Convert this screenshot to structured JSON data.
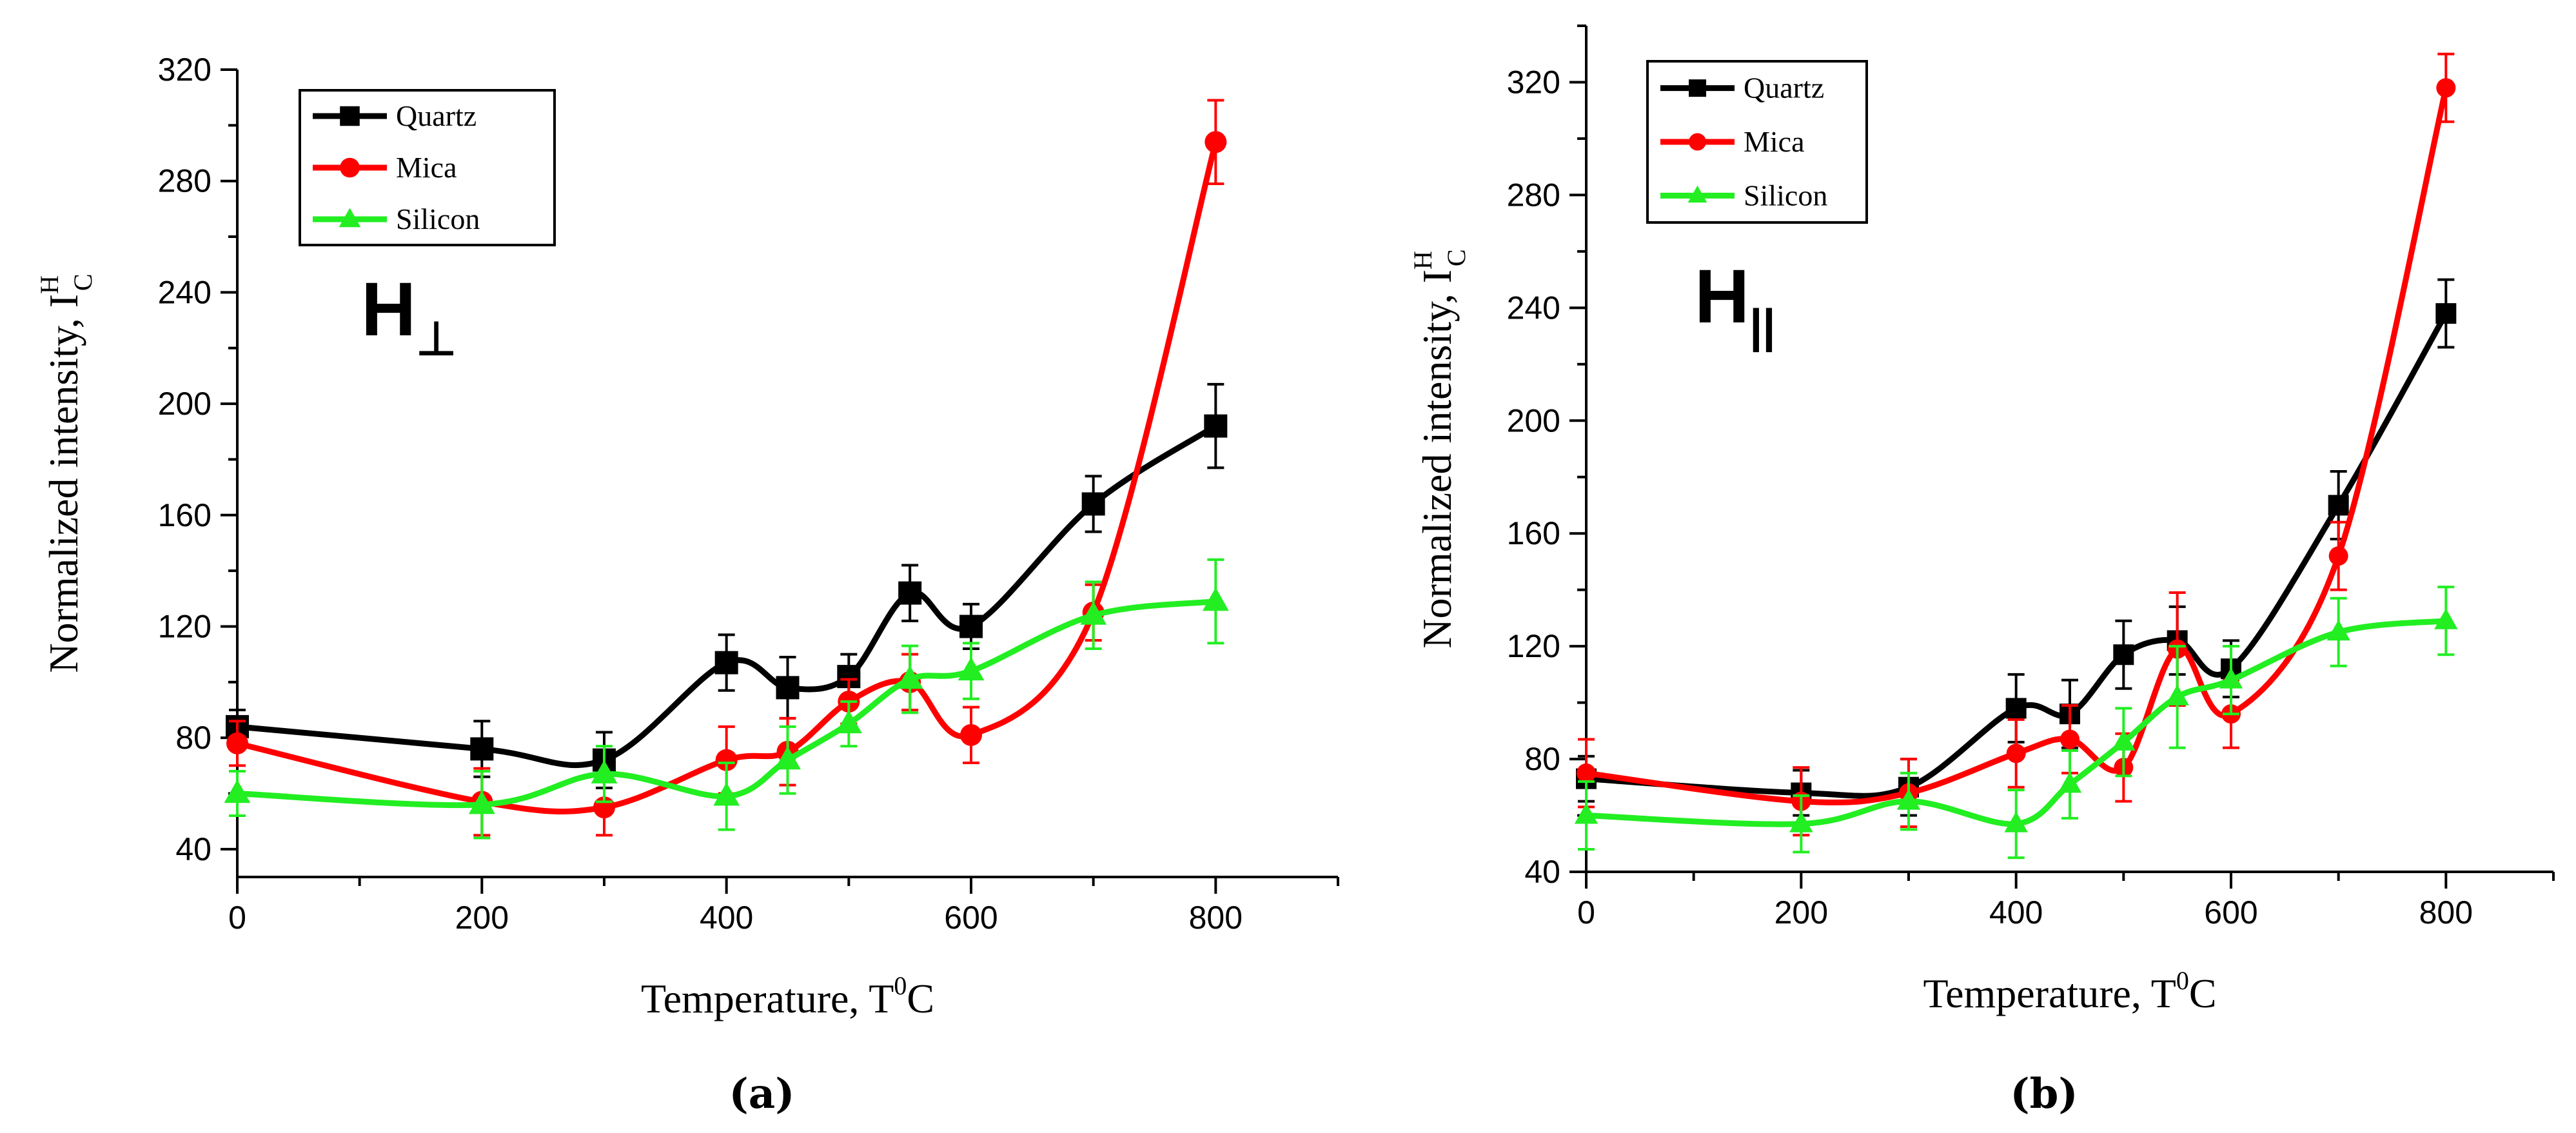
{
  "chart_data": [
    {
      "type": "line",
      "panel_label": "(a)",
      "annotation": {
        "base": "H",
        "sub": "⊥"
      },
      "xlabel": {
        "text": "Temperature, T",
        "sup": "0",
        "tail": "C"
      },
      "ylabel": {
        "text": "Normalized intensity, I",
        "sup": "H",
        "sub": "C"
      },
      "xlim": [
        0,
        900
      ],
      "ylim": [
        30,
        320
      ],
      "xticks": [
        0,
        200,
        400,
        600,
        800
      ],
      "yticks": [
        40,
        80,
        120,
        160,
        200,
        240,
        280,
        320
      ],
      "legend_position": "top-left",
      "series": [
        {
          "name": "Quartz",
          "color": "#000000",
          "marker": "square",
          "x": [
            0,
            200,
            300,
            400,
            450,
            500,
            550,
            600,
            700,
            800
          ],
          "y": [
            84,
            76,
            72,
            107,
            98,
            102,
            132,
            120,
            164,
            192
          ],
          "err": [
            6,
            10,
            10,
            10,
            11,
            8,
            10,
            8,
            10,
            15
          ]
        },
        {
          "name": "Mica",
          "color": "#ff0000",
          "marker": "circle",
          "x": [
            0,
            200,
            300,
            400,
            450,
            500,
            550,
            600,
            700,
            800
          ],
          "y": [
            78,
            57,
            55,
            72,
            75,
            93,
            100,
            81,
            125,
            294
          ],
          "err": [
            8,
            12,
            10,
            12,
            12,
            8,
            10,
            10,
            10,
            15
          ]
        },
        {
          "name": "Silicon",
          "color": "#22ee22",
          "marker": "triangle",
          "x": [
            0,
            200,
            300,
            400,
            450,
            500,
            550,
            600,
            700,
            800
          ],
          "y": [
            60,
            56,
            67,
            59,
            72,
            85,
            101,
            104,
            124,
            129
          ],
          "err": [
            8,
            12,
            10,
            12,
            12,
            8,
            12,
            10,
            12,
            15
          ]
        }
      ]
    },
    {
      "type": "line",
      "panel_label": "(b)",
      "annotation": {
        "base": "H",
        "sub": "||"
      },
      "xlabel": {
        "text": "Temperature, T",
        "sup": "0",
        "tail": "C"
      },
      "ylabel": {
        "text": "Normalized intensity, I",
        "sup": "H",
        "sub": "C"
      },
      "xlim": [
        0,
        900
      ],
      "ylim": [
        40,
        340
      ],
      "xticks": [
        0,
        200,
        400,
        600,
        800
      ],
      "yticks": [
        40,
        80,
        120,
        160,
        200,
        240,
        280,
        320
      ],
      "legend_position": "top-left",
      "series": [
        {
          "name": "Quartz",
          "color": "#000000",
          "marker": "square",
          "x": [
            0,
            200,
            300,
            400,
            450,
            500,
            550,
            600,
            700,
            800
          ],
          "y": [
            73,
            68,
            70,
            98,
            96,
            117,
            122,
            112,
            170,
            238
          ],
          "err": [
            8,
            8,
            10,
            12,
            12,
            12,
            12,
            10,
            12,
            12
          ]
        },
        {
          "name": "Mica",
          "color": "#ff0000",
          "marker": "circle",
          "x": [
            0,
            200,
            300,
            400,
            450,
            500,
            550,
            600,
            700,
            800
          ],
          "y": [
            75,
            65,
            68,
            82,
            87,
            77,
            119,
            96,
            152,
            318
          ],
          "err": [
            12,
            12,
            12,
            12,
            12,
            12,
            20,
            12,
            12,
            12
          ]
        },
        {
          "name": "Silicon",
          "color": "#22ee22",
          "marker": "triangle",
          "x": [
            0,
            200,
            300,
            400,
            450,
            500,
            550,
            600,
            700,
            800
          ],
          "y": [
            60,
            57,
            65,
            57,
            71,
            86,
            102,
            108,
            125,
            129
          ],
          "err": [
            12,
            10,
            10,
            12,
            12,
            12,
            18,
            12,
            12,
            12
          ]
        }
      ]
    }
  ]
}
